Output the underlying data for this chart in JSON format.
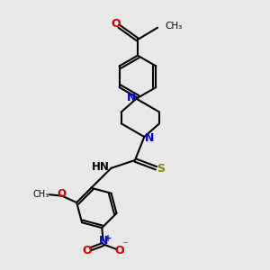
{
  "bg_color": "#e8e8e8",
  "bond_color": "#000000",
  "N_color": "#0000cc",
  "O_color": "#cc0000",
  "S_color": "#888800",
  "line_width": 1.5,
  "fig_size": [
    3.0,
    3.0
  ],
  "dpi": 100,
  "xlim": [
    0,
    10
  ],
  "ylim": [
    0,
    10
  ]
}
